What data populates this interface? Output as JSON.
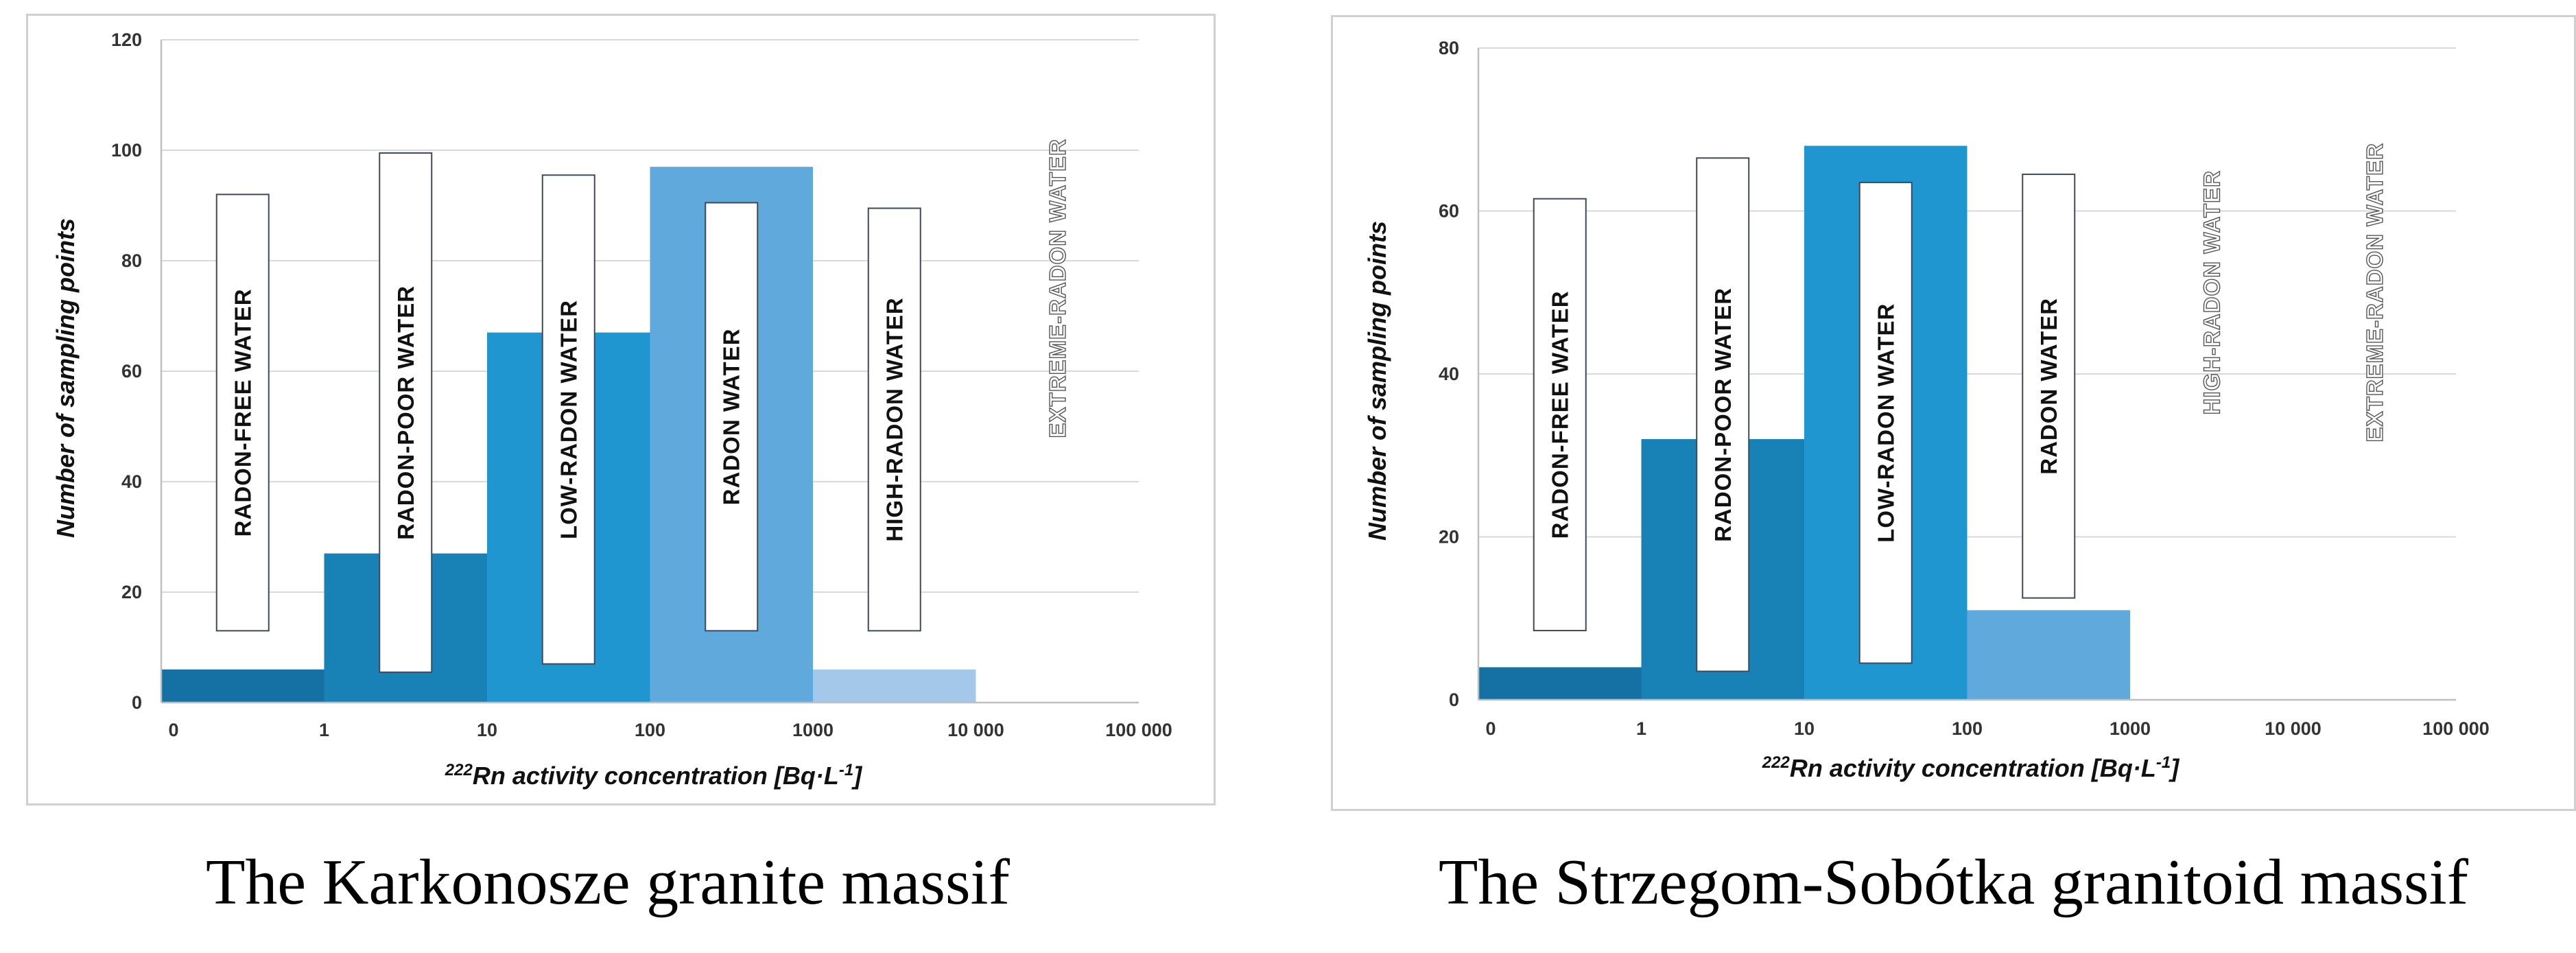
{
  "chart_data": [
    {
      "type": "histogram",
      "caption": "The Karkonosze granite massif",
      "xlabel_sup": "222",
      "xlabel": "Rn activity concentration [Bq·L",
      "xlabel_unit_sup": "-1",
      "xlabel_close": "]",
      "ylabel": "Number of sampling points",
      "x_ticks": [
        "0",
        "1",
        "10",
        "100",
        "1000",
        "10 000",
        "100 000"
      ],
      "y_ticks": [
        "0",
        "20",
        "40",
        "60",
        "80",
        "100",
        "120"
      ],
      "ylim": [
        0,
        120
      ],
      "grid": true,
      "bins": [
        {
          "range": "0–1",
          "value": 6,
          "color": "#1570a3"
        },
        {
          "range": "1–10",
          "value": 27,
          "color": "#1881b6"
        },
        {
          "range": "10–100",
          "value": 67,
          "color": "#1f96d0"
        },
        {
          "range": "100–1000",
          "value": 97,
          "color": "#5fa9dc"
        },
        {
          "range": "1000–10 000",
          "value": 6,
          "color": "#a3c8ea"
        }
      ],
      "class_labels": [
        {
          "text": "RADON-FREE WATER",
          "top": 92,
          "bottom": 13,
          "boxed": true
        },
        {
          "text": "RADON-POOR WATER",
          "top": 99.5,
          "bottom": 5.5,
          "boxed": true
        },
        {
          "text": "LOW-RADON WATER",
          "top": 95.5,
          "bottom": 7,
          "boxed": true
        },
        {
          "text": "RADON WATER",
          "top": 90.5,
          "bottom": 13,
          "boxed": true
        },
        {
          "text": "HIGH-RADON WATER",
          "top": 89.5,
          "bottom": 13,
          "boxed": true
        },
        {
          "text": "EXTREME-RADON WATER",
          "boxed": false
        }
      ]
    },
    {
      "type": "histogram",
      "caption": "The Strzegom-Sobótka granitoid massif",
      "xlabel_sup": "222",
      "xlabel": "Rn activity concentration [Bq·L",
      "xlabel_unit_sup": "-1",
      "xlabel_close": "]",
      "ylabel": "Number of sampling points",
      "x_ticks": [
        "0",
        "1",
        "10",
        "100",
        "1000",
        "10 000",
        "100 000"
      ],
      "y_ticks": [
        "0",
        "20",
        "40",
        "60",
        "80"
      ],
      "ylim": [
        0,
        80
      ],
      "grid": true,
      "bins": [
        {
          "range": "0–1",
          "value": 4,
          "color": "#1570a3"
        },
        {
          "range": "1–10",
          "value": 32,
          "color": "#1881b6"
        },
        {
          "range": "10–100",
          "value": 68,
          "color": "#1f96d0"
        },
        {
          "range": "100–1000",
          "value": 11,
          "color": "#5fa9dc"
        }
      ],
      "class_labels": [
        {
          "text": "RADON-FREE WATER",
          "top": 61.5,
          "bottom": 8.5,
          "boxed": true
        },
        {
          "text": "RADON-POOR WATER",
          "top": 66.5,
          "bottom": 3.5,
          "boxed": true
        },
        {
          "text": "LOW-RADON WATER",
          "top": 63.5,
          "bottom": 4.5,
          "boxed": true
        },
        {
          "text": "RADON WATER",
          "top": 64.5,
          "bottom": 12.5,
          "boxed": true
        },
        {
          "text": "HIGH-RADON WATER",
          "boxed": false
        },
        {
          "text": "EXTREME-RADON WATER",
          "boxed": false
        }
      ]
    }
  ]
}
